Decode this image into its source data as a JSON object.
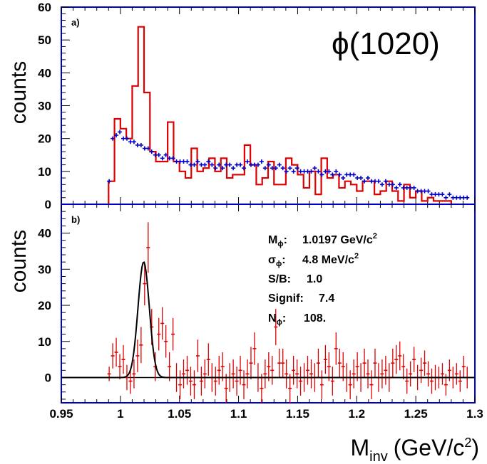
{
  "chart_data": [
    {
      "panel_label": "a)",
      "type": "line",
      "title": "ϕ(1020)",
      "ylabel": "counts",
      "xlim": [
        0.95,
        1.3
      ],
      "ylim": [
        0,
        60
      ],
      "yticks": [
        0,
        10,
        20,
        30,
        40,
        50,
        60
      ],
      "series": [
        {
          "name": "",
          "style": "histogram",
          "color": "#dd0000",
          "bin_width": 0.005,
          "x_start": 0.99,
          "values": [
            7,
            26,
            23,
            20,
            36,
            54,
            34,
            16,
            13,
            13,
            25,
            13,
            10,
            8,
            17,
            10,
            11,
            14,
            10,
            14,
            8,
            9,
            9,
            18,
            12,
            6,
            8,
            13,
            6,
            6,
            14,
            12,
            9,
            5,
            10,
            3,
            14,
            8,
            9,
            5,
            7,
            6,
            4,
            7,
            7,
            3,
            4,
            7,
            4,
            1,
            6,
            2,
            4,
            1,
            2,
            1,
            1,
            1
          ]
        },
        {
          "name": "",
          "style": "points",
          "color": "#0000cc",
          "x": [
            0.9905,
            0.9935,
            0.9965,
            0.9995,
            1.0025,
            1.0055,
            1.0085,
            1.0115,
            1.0145,
            1.0175,
            1.0205,
            1.0235,
            1.0265,
            1.0295,
            1.0325,
            1.0355,
            1.0385,
            1.0415,
            1.0445,
            1.0475,
            1.0505,
            1.0535,
            1.0565,
            1.0595,
            1.0625,
            1.0655,
            1.0685,
            1.0715,
            1.0745,
            1.0775,
            1.0805,
            1.0835,
            1.0865,
            1.0895,
            1.0925,
            1.0955,
            1.0985,
            1.1015,
            1.1045,
            1.1075,
            1.1105,
            1.1135,
            1.1165,
            1.1195,
            1.1225,
            1.1255,
            1.1285,
            1.1315,
            1.1345,
            1.1375,
            1.1405,
            1.1435,
            1.1465,
            1.1495,
            1.1525,
            1.1555,
            1.1585,
            1.1615,
            1.1645,
            1.1675,
            1.1705,
            1.1735,
            1.1765,
            1.1795,
            1.1825,
            1.1855,
            1.1885,
            1.1915,
            1.1945,
            1.1975,
            1.2005,
            1.2035,
            1.2065,
            1.2095,
            1.2125,
            1.2155,
            1.2185,
            1.2215,
            1.2245,
            1.2275,
            1.2305,
            1.2335,
            1.2365,
            1.2395,
            1.2425,
            1.2455,
            1.2485,
            1.2515,
            1.2545,
            1.2575,
            1.2605,
            1.2635,
            1.2665,
            1.2695,
            1.2725,
            1.2755,
            1.2785,
            1.2815,
            1.2845,
            1.2875,
            1.2905,
            1.2935
          ],
          "values": [
            7,
            20,
            21,
            22,
            20,
            20,
            19,
            19,
            18,
            18,
            17,
            17,
            16,
            15,
            15,
            14,
            15,
            14,
            14,
            13,
            13,
            13,
            13,
            12,
            12,
            13,
            12,
            12,
            13,
            12,
            11,
            12,
            11,
            12,
            12,
            11,
            12,
            12,
            11,
            13,
            12,
            12,
            12,
            13,
            11,
            12,
            11,
            11,
            12,
            11,
            10,
            11,
            10,
            11,
            10,
            10,
            10,
            10,
            11,
            10,
            9,
            10,
            10,
            9,
            10,
            9,
            8,
            9,
            9,
            9,
            8,
            8,
            7,
            8,
            7,
            7,
            7,
            6,
            7,
            6,
            6,
            5,
            6,
            5,
            5,
            5,
            5,
            4,
            4,
            4,
            4,
            3,
            3,
            3,
            3,
            2,
            3,
            2,
            2,
            2,
            2,
            2
          ]
        }
      ]
    },
    {
      "panel_label": "b)",
      "type": "scatter",
      "ylabel": "counts",
      "xlabel_main": "M",
      "xlabel_sub": "inv",
      "xlabel_unit": "(GeV/c",
      "xlabel_sup": "2",
      "xlabel_close": ")",
      "xlim": [
        0.95,
        1.3
      ],
      "ylim": [
        -7,
        48
      ],
      "yticks": [
        0,
        10,
        20,
        30,
        40
      ],
      "xticks": [
        "0.95",
        "1",
        "1.05",
        "1.1",
        "1.15",
        "1.2",
        "1.25",
        "1.3"
      ],
      "xtick_values": [
        0.95,
        1.0,
        1.05,
        1.1,
        1.15,
        1.2,
        1.25,
        1.3
      ],
      "points": {
        "color": "#dd0000",
        "x": [
          0.9905,
          0.9935,
          0.9965,
          0.9995,
          1.0025,
          1.0055,
          1.0085,
          1.0115,
          1.0145,
          1.0175,
          1.0205,
          1.0235,
          1.0265,
          1.0295,
          1.0325,
          1.0355,
          1.0385,
          1.0415,
          1.0445,
          1.0475,
          1.0505,
          1.0535,
          1.0565,
          1.0595,
          1.0625,
          1.0655,
          1.0685,
          1.0715,
          1.0745,
          1.0775,
          1.0805,
          1.0835,
          1.0865,
          1.0895,
          1.0925,
          1.0955,
          1.0985,
          1.1015,
          1.1045,
          1.1075,
          1.1105,
          1.1135,
          1.1165,
          1.1195,
          1.1225,
          1.1255,
          1.1285,
          1.1315,
          1.1345,
          1.1375,
          1.1405,
          1.1435,
          1.1465,
          1.1495,
          1.1525,
          1.1555,
          1.1585,
          1.1615,
          1.1645,
          1.1675,
          1.1705,
          1.1735,
          1.1765,
          1.1795,
          1.1825,
          1.1855,
          1.1885,
          1.1915,
          1.1945,
          1.1975,
          1.2005,
          1.2035,
          1.2065,
          1.2095,
          1.2125,
          1.2155,
          1.2185,
          1.2215,
          1.2245,
          1.2275,
          1.2305,
          1.2335,
          1.2365,
          1.2395,
          1.2425,
          1.2455,
          1.2485,
          1.2515,
          1.2545,
          1.2575,
          1.2605,
          1.2635,
          1.2665,
          1.2695,
          1.2725,
          1.2755,
          1.2785,
          1.2815,
          1.2845,
          1.2875,
          1.2905,
          1.2935
        ],
        "values": [
          1,
          6,
          7,
          3,
          5,
          0,
          -1,
          1,
          6,
          9,
          26,
          36,
          14,
          3,
          12,
          15,
          10,
          3,
          12,
          0,
          -2,
          1,
          2,
          -1,
          -2,
          6,
          -1,
          1,
          5,
          0,
          -1,
          2,
          3,
          -3,
          0,
          1,
          -1,
          2,
          -2,
          1,
          4,
          8,
          0,
          -3,
          1,
          3,
          2,
          14,
          4,
          4,
          1,
          -3,
          2,
          1,
          -1,
          0,
          2,
          1,
          0,
          4,
          -2,
          5,
          3,
          -1,
          8,
          4,
          3,
          0,
          -2,
          1,
          3,
          0,
          4,
          1,
          -2,
          4,
          0,
          1,
          2,
          0,
          4,
          5,
          6,
          3,
          -1,
          1,
          5,
          0,
          2,
          4,
          1,
          -1,
          0,
          0,
          1,
          -2,
          2,
          0,
          1,
          -1,
          3,
          0
        ],
        "errors": [
          2,
          3.5,
          4,
          3.5,
          4,
          3.5,
          3.5,
          4,
          4.5,
          5,
          6,
          7,
          5,
          4,
          4.5,
          4.5,
          4.5,
          4,
          4.5,
          4,
          4,
          4,
          4,
          4,
          4,
          4.5,
          4,
          4,
          4.5,
          4,
          4,
          4,
          4,
          4,
          4,
          4,
          4,
          4,
          4,
          4,
          4.5,
          4.5,
          4,
          4,
          4,
          4,
          4,
          5,
          4,
          4,
          4,
          4,
          4,
          4,
          4,
          4,
          4,
          4,
          4,
          4,
          4,
          4,
          4,
          4,
          4.5,
          4,
          4,
          4,
          4,
          4,
          4,
          4,
          4,
          4,
          4,
          4,
          4,
          4,
          4,
          4,
          4,
          4,
          4,
          3.5,
          3.5,
          3.5,
          3.5,
          3.5,
          3.5,
          3.5,
          3.5,
          3.5,
          3.5,
          3,
          3,
          3,
          3,
          3,
          3,
          3,
          3,
          3
        ]
      },
      "fit": {
        "color": "#000000",
        "shape": "gaussian",
        "mean": 1.0197,
        "sigma": 0.0048,
        "amplitude": 32
      },
      "stats": [
        {
          "label_main": "M",
          "label_sub": "ϕ",
          "label_end": ":",
          "value": "1.0197 GeV/c",
          "value_sup": "2"
        },
        {
          "label_main": "σ",
          "label_sub": "ϕ",
          "label_end": ":",
          "value": "4.8 MeV/c",
          "value_sup": "2"
        },
        {
          "label_main": "S/B:",
          "label_sub": "",
          "label_end": "",
          "value": "1.0",
          "value_sup": ""
        },
        {
          "label_main": "Signif:",
          "label_sub": "",
          "label_end": "",
          "value": "7.4",
          "value_sup": ""
        },
        {
          "label_main": "N",
          "label_sub": "ϕ",
          "label_end": ":",
          "value": "108.",
          "value_sup": ""
        }
      ]
    }
  ]
}
